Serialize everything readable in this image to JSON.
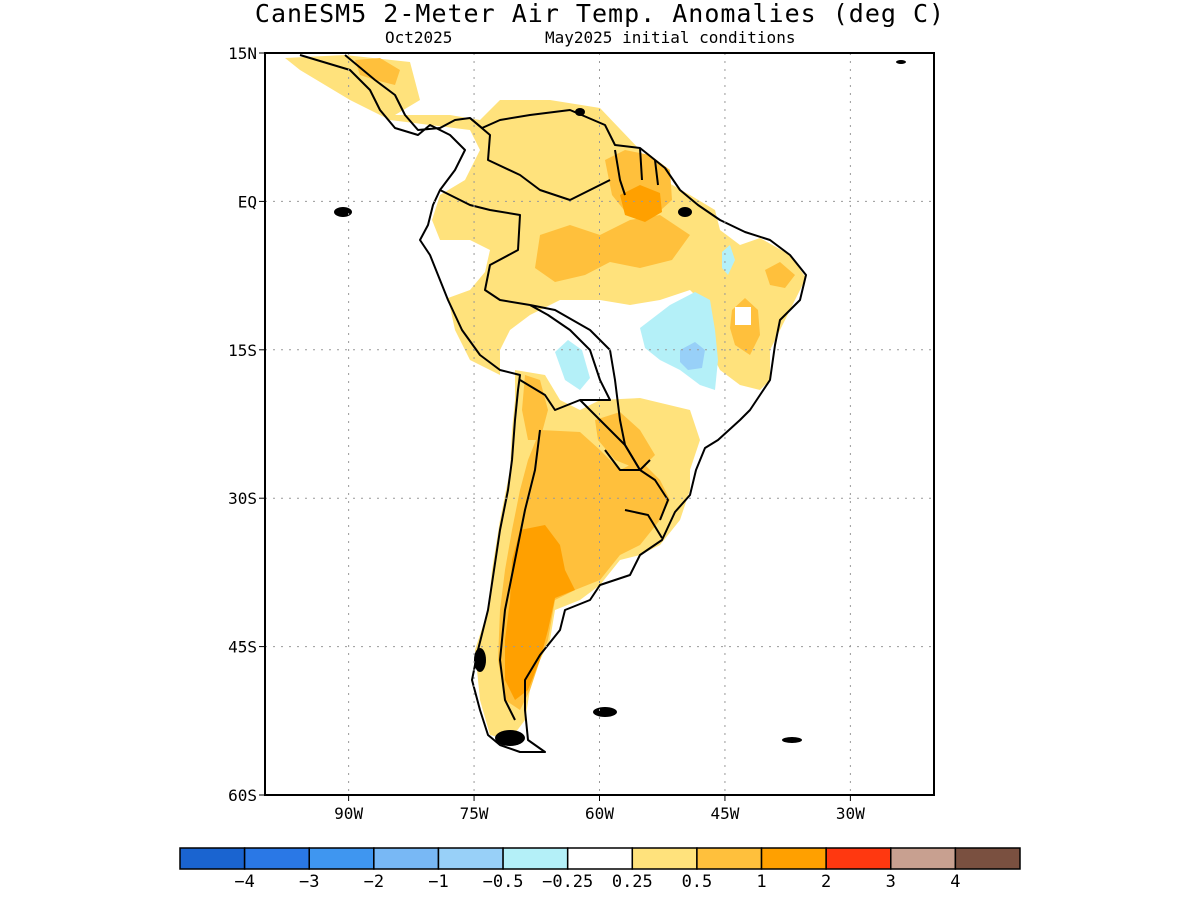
{
  "title": "CanESM5 2-Meter Air Temp. Anomalies (deg C)",
  "subtitle_left": "Oct2025",
  "subtitle_right": "May2025 initial conditions",
  "lat_ticks": [
    {
      "value": 15,
      "label": "15N"
    },
    {
      "value": 0,
      "label": "EQ"
    },
    {
      "value": -15,
      "label": "15S"
    },
    {
      "value": -30,
      "label": "30S"
    },
    {
      "value": -45,
      "label": "45S"
    },
    {
      "value": -60,
      "label": "60S"
    }
  ],
  "lon_ticks": [
    {
      "value": -90,
      "label": "90W"
    },
    {
      "value": -75,
      "label": "75W"
    },
    {
      "value": -60,
      "label": "60W"
    },
    {
      "value": -45,
      "label": "45W"
    },
    {
      "value": -30,
      "label": "30W"
    }
  ],
  "map_extent": {
    "lon_min": -100,
    "lon_max": -20,
    "lat_min": -60,
    "lat_max": 15
  },
  "colorbar": {
    "colors": [
      "#1a64d0",
      "#2a78e6",
      "#3f96f0",
      "#78b8f5",
      "#98d0f8",
      "#b4f0f8",
      "#ffffff",
      "#ffe27c",
      "#ffc03c",
      "#ffa000",
      "#ff3810",
      "#c8a090",
      "#7a5040"
    ],
    "labels": [
      "-4",
      "-3",
      "-2",
      "-1",
      "-0.5",
      "-0.25",
      "0.25",
      "0.5",
      "1",
      "2",
      "3",
      "4"
    ]
  },
  "palette": {
    "light_yellow": "#ffe27c",
    "light_orange": "#ffc03c",
    "orange": "#ffa000",
    "light_cyan": "#b4f0f8",
    "light_blue": "#98d0f8"
  }
}
